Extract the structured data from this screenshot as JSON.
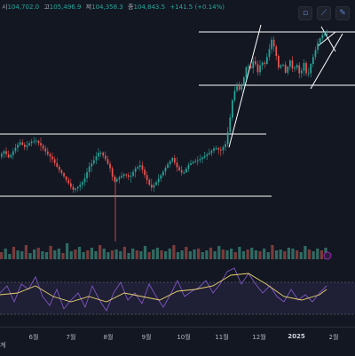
{
  "header": {
    "open_label": "시",
    "open": "104,702.0",
    "high_label": "고",
    "high": "105,496.9",
    "low_label": "저",
    "low": "104,358.3",
    "close_label": "종",
    "close": "104,843.5",
    "change": "+141.5 (+0.14%)"
  },
  "toolbar": [
    {
      "icon": "cursor-icon",
      "glyph": "▫"
    },
    {
      "icon": "trendline-icon",
      "glyph": "⟋"
    },
    {
      "icon": "brush-icon",
      "glyph": "✎"
    }
  ],
  "footer_label": "계",
  "x_ticks": [
    {
      "label": "6월",
      "bold": false
    },
    {
      "label": "7월",
      "bold": false
    },
    {
      "label": "8월",
      "bold": false
    },
    {
      "label": "9월",
      "bold": false
    },
    {
      "label": "10월",
      "bold": false
    },
    {
      "label": "11월",
      "bold": false
    },
    {
      "label": "12월",
      "bold": false
    },
    {
      "label": "2025",
      "bold": true
    },
    {
      "label": "2월",
      "bold": false
    }
  ],
  "colors": {
    "up": "#26a69a",
    "down": "#ef5350",
    "line": "#ffffff",
    "rsi": "#7e57c2",
    "rsi_ma": "#e8d36b"
  },
  "chart_data": {
    "type": "candlestick",
    "price_path": [
      [
        0,
        178
      ],
      [
        6,
        170
      ],
      [
        12,
        178
      ],
      [
        18,
        168
      ],
      [
        24,
        160
      ],
      [
        30,
        166
      ],
      [
        36,
        160
      ],
      [
        42,
        158
      ],
      [
        48,
        164
      ],
      [
        54,
        172
      ],
      [
        60,
        178
      ],
      [
        66,
        188
      ],
      [
        72,
        196
      ],
      [
        78,
        205
      ],
      [
        84,
        214
      ],
      [
        90,
        210
      ],
      [
        96,
        204
      ],
      [
        102,
        188
      ],
      [
        108,
        180
      ],
      [
        114,
        170
      ],
      [
        120,
        178
      ],
      [
        126,
        190
      ],
      [
        130,
        205
      ],
      [
        136,
        200
      ],
      [
        142,
        196
      ],
      [
        148,
        200
      ],
      [
        154,
        190
      ],
      [
        160,
        186
      ],
      [
        166,
        200
      ],
      [
        172,
        212
      ],
      [
        178,
        205
      ],
      [
        184,
        196
      ],
      [
        190,
        186
      ],
      [
        196,
        178
      ],
      [
        202,
        190
      ],
      [
        208,
        196
      ],
      [
        214,
        186
      ],
      [
        220,
        182
      ],
      [
        226,
        180
      ],
      [
        232,
        176
      ],
      [
        238,
        172
      ],
      [
        244,
        166
      ],
      [
        250,
        170
      ],
      [
        256,
        162
      ],
      [
        260,
        140
      ],
      [
        264,
        110
      ],
      [
        268,
        96
      ],
      [
        272,
        102
      ],
      [
        276,
        90
      ],
      [
        280,
        72
      ],
      [
        284,
        78
      ],
      [
        288,
        66
      ],
      [
        292,
        82
      ],
      [
        296,
        70
      ],
      [
        300,
        72
      ],
      [
        304,
        60
      ],
      [
        308,
        44
      ],
      [
        312,
        58
      ],
      [
        316,
        78
      ],
      [
        320,
        70
      ],
      [
        324,
        84
      ],
      [
        328,
        66
      ],
      [
        332,
        80
      ],
      [
        336,
        72
      ],
      [
        340,
        86
      ],
      [
        344,
        70
      ],
      [
        348,
        88
      ],
      [
        352,
        72
      ],
      [
        356,
        60
      ],
      [
        360,
        48
      ],
      [
        364,
        40
      ],
      [
        368,
        38
      ]
    ],
    "volume": [
      8,
      12,
      6,
      14,
      10,
      9,
      16,
      7,
      11,
      13,
      9,
      8,
      15,
      10,
      12,
      7,
      18,
      9,
      11,
      14,
      8,
      10,
      13,
      9,
      16,
      12,
      8,
      10,
      11,
      9,
      14,
      7,
      12,
      10,
      9,
      15,
      8,
      11,
      13,
      10,
      9,
      12,
      16,
      8,
      10,
      14,
      9,
      11,
      12,
      8,
      10,
      13,
      9,
      15,
      11,
      10,
      12,
      8,
      14,
      9,
      11,
      13,
      10,
      9,
      12,
      8,
      16,
      10,
      11,
      9,
      13,
      12,
      10,
      8,
      15,
      11,
      9,
      12,
      10,
      13
    ],
    "rsi": [
      [
        0,
        330
      ],
      [
        8,
        322
      ],
      [
        16,
        340
      ],
      [
        24,
        320
      ],
      [
        32,
        326
      ],
      [
        40,
        312
      ],
      [
        48,
        334
      ],
      [
        56,
        344
      ],
      [
        64,
        326
      ],
      [
        72,
        348
      ],
      [
        80,
        338
      ],
      [
        88,
        330
      ],
      [
        96,
        346
      ],
      [
        104,
        322
      ],
      [
        112,
        338
      ],
      [
        120,
        350
      ],
      [
        128,
        330
      ],
      [
        136,
        318
      ],
      [
        144,
        338
      ],
      [
        152,
        330
      ],
      [
        160,
        342
      ],
      [
        168,
        320
      ],
      [
        176,
        334
      ],
      [
        184,
        346
      ],
      [
        192,
        332
      ],
      [
        200,
        316
      ],
      [
        208,
        334
      ],
      [
        216,
        328
      ],
      [
        224,
        324
      ],
      [
        232,
        316
      ],
      [
        240,
        330
      ],
      [
        248,
        320
      ],
      [
        256,
        306
      ],
      [
        264,
        302
      ],
      [
        272,
        320
      ],
      [
        280,
        308
      ],
      [
        288,
        320
      ],
      [
        296,
        330
      ],
      [
        304,
        322
      ],
      [
        312,
        334
      ],
      [
        320,
        340
      ],
      [
        328,
        326
      ],
      [
        336,
        338
      ],
      [
        344,
        332
      ],
      [
        352,
        340
      ],
      [
        360,
        330
      ],
      [
        368,
        322
      ]
    ],
    "rsi_ma": [
      [
        0,
        332
      ],
      [
        20,
        330
      ],
      [
        40,
        322
      ],
      [
        60,
        334
      ],
      [
        80,
        340
      ],
      [
        100,
        334
      ],
      [
        120,
        340
      ],
      [
        140,
        330
      ],
      [
        160,
        334
      ],
      [
        180,
        338
      ],
      [
        200,
        328
      ],
      [
        220,
        326
      ],
      [
        240,
        322
      ],
      [
        260,
        310
      ],
      [
        280,
        308
      ],
      [
        300,
        320
      ],
      [
        320,
        334
      ],
      [
        340,
        338
      ],
      [
        360,
        332
      ],
      [
        368,
        326
      ]
    ]
  }
}
